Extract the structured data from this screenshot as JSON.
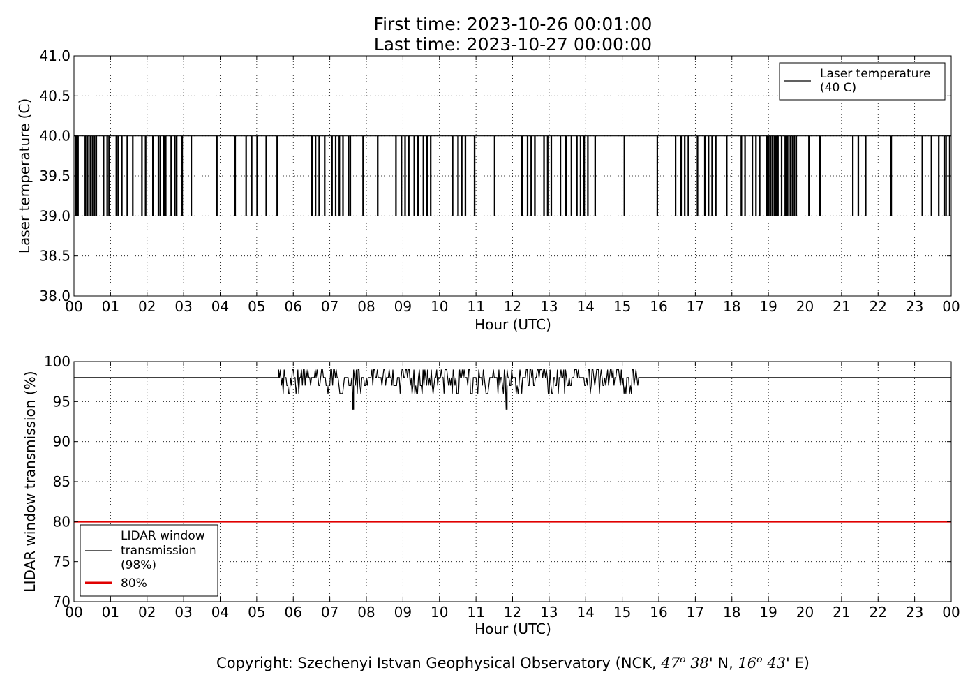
{
  "header": {
    "first_time": "First time: 2023-10-26 00:01:00",
    "last_time": "Last time: 2023-10-27 00:00:00"
  },
  "footer": {
    "prefix": "Copyright: Szechenyi Istvan Geophysical Observatory (NCK, ",
    "lat_deg": "47",
    "lat_sup": "o",
    "lat_min": "38",
    "lat_suffix": "' N, ",
    "lon_deg": "16",
    "lon_sup": "o",
    "lon_min": "43",
    "lon_suffix": "' E)"
  },
  "chart_data": [
    {
      "type": "line",
      "xlabel": "Hour (UTC)",
      "ylabel": "Laser temperature (C)",
      "xlim": [
        0,
        24
      ],
      "ylim": [
        38.0,
        41.0
      ],
      "xticks": [
        "00",
        "01",
        "02",
        "03",
        "04",
        "05",
        "06",
        "07",
        "08",
        "09",
        "10",
        "11",
        "12",
        "13",
        "14",
        "15",
        "16",
        "17",
        "18",
        "19",
        "20",
        "21",
        "22",
        "23",
        "00"
      ],
      "yticks": [
        "38.0",
        "38.5",
        "39.0",
        "39.5",
        "40.0",
        "40.5",
        "41.0"
      ],
      "grid": true,
      "legend_position": "top-right",
      "colors": {
        "series": "#000000"
      },
      "series": [
        {
          "name": "Laser temperature\n(40 C)",
          "baseline": 40.0,
          "dip_value": 39.0,
          "dip_hours": [
            0.05,
            0.1,
            0.3,
            0.35,
            0.4,
            0.45,
            0.5,
            0.55,
            0.6,
            0.8,
            0.9,
            0.95,
            1.15,
            1.2,
            1.3,
            1.45,
            1.6,
            1.85,
            1.95,
            2.15,
            2.3,
            2.35,
            2.45,
            2.5,
            2.65,
            2.75,
            2.8,
            2.95,
            3.2,
            3.9,
            4.4,
            4.7,
            4.85,
            5.0,
            5.25,
            5.55,
            6.5,
            6.6,
            6.7,
            6.85,
            7.05,
            7.15,
            7.25,
            7.35,
            7.5,
            7.55,
            7.9,
            8.3,
            8.8,
            8.95,
            9.05,
            9.15,
            9.3,
            9.4,
            9.55,
            9.65,
            9.75,
            10.35,
            10.5,
            10.6,
            10.7,
            10.95,
            11.5,
            12.25,
            12.4,
            12.5,
            12.6,
            12.85,
            12.95,
            13.05,
            13.3,
            13.45,
            13.6,
            13.75,
            13.85,
            13.95,
            14.05,
            14.25,
            15.05,
            15.95,
            16.45,
            16.6,
            16.7,
            16.8,
            17.05,
            17.25,
            17.35,
            17.45,
            17.55,
            17.85,
            18.25,
            18.35,
            18.55,
            18.65,
            18.75,
            18.95,
            19.0,
            19.05,
            19.1,
            19.15,
            19.2,
            19.25,
            19.35,
            19.45,
            19.5,
            19.55,
            19.6,
            19.65,
            19.7,
            19.75,
            20.1,
            20.4,
            21.3,
            21.45,
            21.65,
            22.35,
            23.2,
            23.45,
            23.65,
            23.8,
            23.85,
            23.95
          ]
        }
      ]
    },
    {
      "type": "line",
      "xlabel": "Hour (UTC)",
      "ylabel": "LIDAR window transmission (%)",
      "xlim": [
        0,
        24
      ],
      "ylim": [
        70,
        100
      ],
      "xticks": [
        "00",
        "01",
        "02",
        "03",
        "04",
        "05",
        "06",
        "07",
        "08",
        "09",
        "10",
        "11",
        "12",
        "13",
        "14",
        "15",
        "16",
        "17",
        "18",
        "19",
        "20",
        "21",
        "22",
        "23",
        "00"
      ],
      "yticks": [
        "70",
        "75",
        "80",
        "85",
        "90",
        "95",
        "100"
      ],
      "grid": true,
      "legend_position": "bottom-left",
      "colors": {
        "series": "#000000",
        "threshold": "#e00000"
      },
      "series": [
        {
          "name": "LIDAR window\ntransmission\n(98%)",
          "baseline": 98,
          "noisy_range_hours": [
            5.6,
            15.45
          ],
          "noise_min": 94,
          "noise_max": 99,
          "spikes": [
            [
              5.65,
              99
            ],
            [
              5.7,
              97
            ],
            [
              5.8,
              98
            ],
            [
              5.9,
              96
            ],
            [
              6.0,
              99
            ],
            [
              6.1,
              97
            ],
            [
              6.3,
              99
            ],
            [
              6.6,
              96
            ],
            [
              6.8,
              99
            ],
            [
              7.0,
              97
            ],
            [
              7.2,
              99
            ],
            [
              7.4,
              96
            ],
            [
              7.6,
              97
            ],
            [
              7.65,
              94
            ],
            [
              7.8,
              99
            ],
            [
              8.0,
              96
            ],
            [
              8.2,
              99
            ],
            [
              8.5,
              99
            ],
            [
              8.8,
              97
            ],
            [
              9.0,
              99
            ],
            [
              9.2,
              97
            ],
            [
              9.4,
              96
            ],
            [
              9.6,
              99
            ],
            [
              9.8,
              97
            ],
            [
              10.0,
              96
            ],
            [
              10.2,
              99
            ],
            [
              10.5,
              96
            ],
            [
              10.7,
              99
            ],
            [
              10.9,
              96
            ],
            [
              11.1,
              99
            ],
            [
              11.3,
              96
            ],
            [
              11.5,
              99
            ],
            [
              11.7,
              97
            ],
            [
              11.85,
              94
            ],
            [
              12.0,
              99
            ],
            [
              12.2,
              97
            ],
            [
              12.4,
              99
            ],
            [
              12.6,
              97
            ],
            [
              12.8,
              99
            ],
            [
              13.0,
              96
            ],
            [
              13.2,
              98
            ],
            [
              13.4,
              99
            ],
            [
              13.6,
              97
            ],
            [
              13.8,
              99
            ],
            [
              14.0,
              97
            ],
            [
              14.2,
              99
            ],
            [
              14.5,
              97
            ],
            [
              14.7,
              99
            ],
            [
              15.0,
              99
            ],
            [
              15.3,
              99
            ],
            [
              15.4,
              99
            ]
          ]
        },
        {
          "name": "80%",
          "constant": 80
        }
      ]
    }
  ]
}
